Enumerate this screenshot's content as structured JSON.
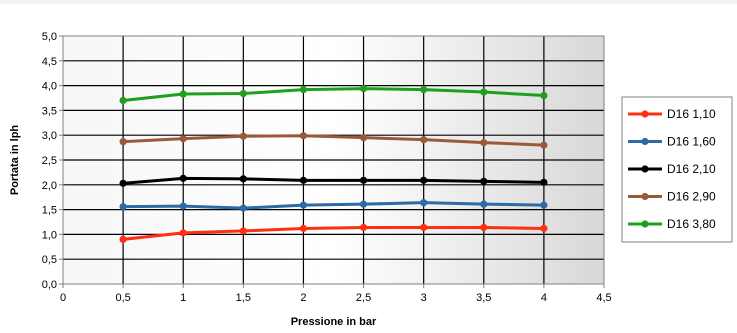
{
  "chart_data": {
    "type": "line",
    "title": "",
    "xlabel": "Pressione in bar",
    "ylabel": "Portata in lph",
    "xlim": [
      0,
      4.5
    ],
    "ylim": [
      0,
      5
    ],
    "x_ticks": [
      "0",
      "0,5",
      "1",
      "1,5",
      "2",
      "2,5",
      "3",
      "3,5",
      "4",
      "4,5"
    ],
    "y_ticks": [
      "0,0",
      "0,5",
      "1,0",
      "1,5",
      "2,0",
      "2,5",
      "3,0",
      "3,5",
      "4,0",
      "4,5",
      "5,0"
    ],
    "grid": true,
    "legend_position": "right",
    "x": [
      0.5,
      1,
      1.5,
      2,
      2.5,
      3,
      3.5,
      4
    ],
    "series": [
      {
        "name": "D16 1,10",
        "color": "#ff3010",
        "values": [
          0.9,
          1.03,
          1.07,
          1.12,
          1.14,
          1.14,
          1.14,
          1.12
        ]
      },
      {
        "name": "D16 1,60",
        "color": "#2d6aa6",
        "values": [
          1.56,
          1.57,
          1.53,
          1.59,
          1.61,
          1.64,
          1.61,
          1.59
        ]
      },
      {
        "name": "D16 2,10",
        "color": "#000000",
        "values": [
          2.03,
          2.13,
          2.12,
          2.09,
          2.09,
          2.09,
          2.07,
          2.05
        ]
      },
      {
        "name": "D16 2,90",
        "color": "#9a5a3a",
        "values": [
          2.87,
          2.93,
          2.98,
          2.99,
          2.95,
          2.91,
          2.85,
          2.8
        ]
      },
      {
        "name": "D16 3,80",
        "color": "#1ea01e",
        "values": [
          3.7,
          3.83,
          3.84,
          3.92,
          3.94,
          3.92,
          3.87,
          3.8
        ]
      }
    ]
  }
}
